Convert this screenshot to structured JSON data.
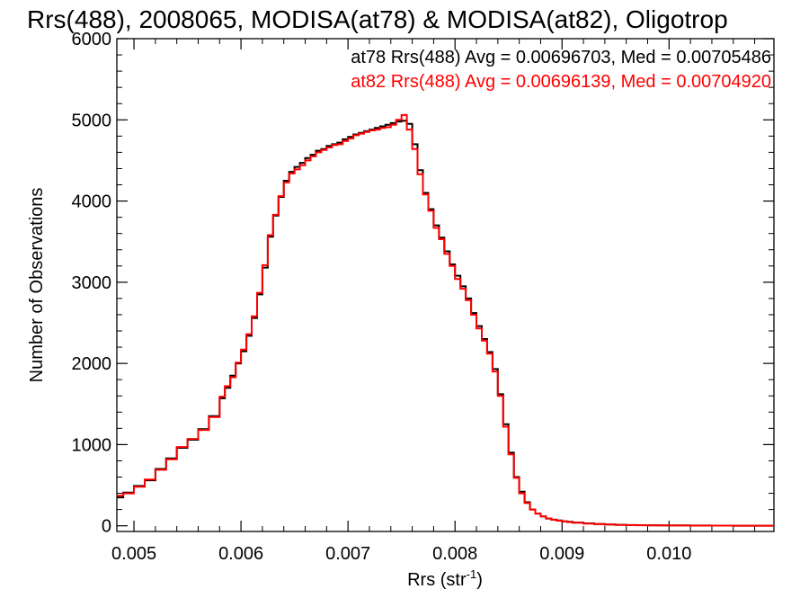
{
  "chart_data": {
    "type": "line",
    "title": "Rrs(488), 2008065, MODISA(at78) & MODISA(at82), Oligotrop",
    "xlabel_main": "Rrs (str",
    "xlabel_sup": "-1",
    "xlabel_close": ")",
    "ylabel": "Number of Observations",
    "xlim": [
      0.00484,
      0.01098
    ],
    "ylim": [
      -70,
      6000
    ],
    "xticks": [
      0.005,
      0.006,
      0.007,
      0.008,
      0.009,
      0.01
    ],
    "xtick_labels": [
      "0.005",
      "0.006",
      "0.007",
      "0.008",
      "0.009",
      "0.010"
    ],
    "yticks": [
      0,
      1000,
      2000,
      3000,
      4000,
      5000,
      6000
    ],
    "ytick_labels": [
      "0",
      "1000",
      "2000",
      "3000",
      "4000",
      "5000",
      "6000"
    ],
    "grid": false,
    "legend_position": "top-right",
    "series": [
      {
        "name": "at78",
        "label": "at78 Rrs(488) Avg = 0.00696703, Med = 0.00705486",
        "color": "#000000",
        "x": [
          0.00484,
          0.0049,
          0.005,
          0.0051,
          0.0052,
          0.0053,
          0.0054,
          0.0055,
          0.0056,
          0.0057,
          0.0058,
          0.00585,
          0.0059,
          0.00595,
          0.006,
          0.00605,
          0.0061,
          0.00615,
          0.0062,
          0.00625,
          0.0063,
          0.00635,
          0.0064,
          0.00645,
          0.0065,
          0.00655,
          0.0066,
          0.00665,
          0.0067,
          0.00675,
          0.0068,
          0.00685,
          0.0069,
          0.00695,
          0.007,
          0.00705,
          0.0071,
          0.00715,
          0.0072,
          0.00725,
          0.0073,
          0.00735,
          0.0074,
          0.00745,
          0.0075,
          0.00755,
          0.0076,
          0.00765,
          0.0077,
          0.00775,
          0.0078,
          0.00785,
          0.0079,
          0.00795,
          0.008,
          0.00805,
          0.0081,
          0.00815,
          0.0082,
          0.00825,
          0.0083,
          0.00835,
          0.0084,
          0.00845,
          0.0085,
          0.00855,
          0.0086,
          0.00865,
          0.0087,
          0.00875,
          0.0088,
          0.00885,
          0.0089,
          0.00895,
          0.009,
          0.00905,
          0.0091,
          0.0092,
          0.0093,
          0.0094,
          0.0095,
          0.0096,
          0.0097,
          0.0098,
          0.0099,
          0.01,
          0.0102,
          0.0104,
          0.0106,
          0.0108,
          0.01098
        ],
        "y": [
          350,
          410,
          490,
          560,
          700,
          830,
          960,
          1060,
          1190,
          1350,
          1570,
          1700,
          1850,
          2000,
          2150,
          2340,
          2560,
          2850,
          3180,
          3560,
          3820,
          4050,
          4250,
          4360,
          4420,
          4470,
          4530,
          4570,
          4620,
          4640,
          4680,
          4700,
          4720,
          4760,
          4790,
          4820,
          4840,
          4860,
          4880,
          4900,
          4920,
          4940,
          4960,
          4980,
          4990,
          4950,
          4700,
          4380,
          4100,
          3900,
          3700,
          3550,
          3380,
          3220,
          3080,
          2950,
          2800,
          2620,
          2460,
          2300,
          2140,
          1930,
          1620,
          1250,
          900,
          600,
          420,
          290,
          200,
          150,
          115,
          90,
          75,
          65,
          55,
          48,
          40,
          30,
          22,
          16,
          12,
          9,
          7,
          6,
          5,
          4,
          3,
          2,
          1,
          1,
          1
        ]
      },
      {
        "name": "at82",
        "label": "at82 Rrs(488) Avg = 0.00696139, Med = 0.00704920",
        "color": "#ff0000",
        "x": [
          0.00484,
          0.0049,
          0.005,
          0.0051,
          0.0052,
          0.0053,
          0.0054,
          0.0055,
          0.0056,
          0.0057,
          0.0058,
          0.00585,
          0.0059,
          0.00595,
          0.006,
          0.00605,
          0.0061,
          0.00615,
          0.0062,
          0.00625,
          0.0063,
          0.00635,
          0.0064,
          0.00645,
          0.0065,
          0.00655,
          0.0066,
          0.00665,
          0.0067,
          0.00675,
          0.0068,
          0.00685,
          0.0069,
          0.00695,
          0.007,
          0.00705,
          0.0071,
          0.00715,
          0.0072,
          0.00725,
          0.0073,
          0.00735,
          0.0074,
          0.00745,
          0.0075,
          0.00755,
          0.0076,
          0.00765,
          0.0077,
          0.00775,
          0.0078,
          0.00785,
          0.0079,
          0.00795,
          0.008,
          0.00805,
          0.0081,
          0.00815,
          0.0082,
          0.00825,
          0.0083,
          0.00835,
          0.0084,
          0.00845,
          0.0085,
          0.00855,
          0.0086,
          0.00865,
          0.0087,
          0.00875,
          0.0088,
          0.00885,
          0.0089,
          0.00895,
          0.009,
          0.00905,
          0.0091,
          0.0092,
          0.0093,
          0.0094,
          0.0095,
          0.0096,
          0.0097,
          0.0098,
          0.0099,
          0.01,
          0.0102,
          0.0104,
          0.0106,
          0.0108,
          0.01098
        ],
        "y": [
          370,
          400,
          480,
          570,
          690,
          820,
          970,
          1070,
          1180,
          1340,
          1590,
          1720,
          1830,
          2010,
          2170,
          2360,
          2580,
          2870,
          3210,
          3580,
          3830,
          4060,
          4230,
          4340,
          4390,
          4440,
          4500,
          4550,
          4600,
          4630,
          4660,
          4690,
          4700,
          4740,
          4770,
          4810,
          4830,
          4850,
          4870,
          4880,
          4900,
          4910,
          4940,
          5000,
          5060,
          4880,
          4640,
          4330,
          4080,
          3880,
          3670,
          3530,
          3350,
          3200,
          3040,
          2920,
          2780,
          2600,
          2430,
          2280,
          2120,
          1900,
          1600,
          1220,
          880,
          590,
          400,
          280,
          200,
          150,
          115,
          90,
          75,
          63,
          53,
          45,
          38,
          28,
          21,
          15,
          11,
          8,
          6,
          5,
          4,
          3,
          2,
          2,
          1,
          1,
          1
        ]
      }
    ]
  }
}
